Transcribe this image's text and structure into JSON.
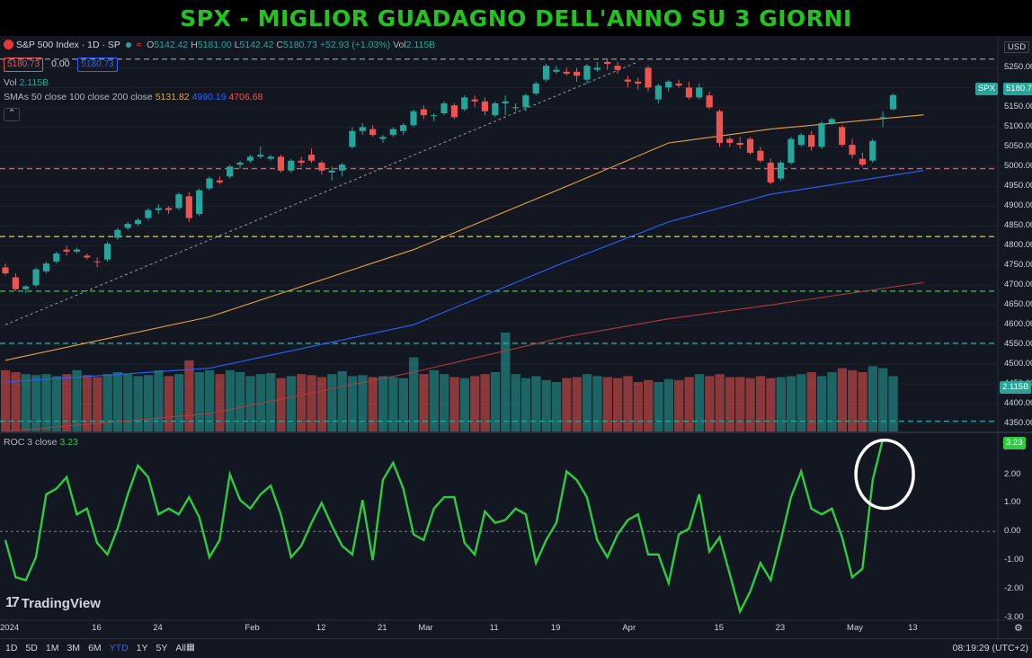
{
  "title": "SPX - MIGLIOR GUADAGNO DELL'ANNO SU 3 GIORNI",
  "symbol": {
    "name": "S&P 500 Index · 1D · SP",
    "o_label": "O",
    "o": "5142.42",
    "h_label": "H",
    "h": "5181.00",
    "l_label": "L",
    "l": "5142.42",
    "c_label": "C",
    "c": "5180.73",
    "change": "+52.93 (+1.03%)",
    "vol_label": "Vol",
    "vol": "2.115B",
    "bid": "5180.73",
    "spread": "0.00",
    "ask": "5180.73"
  },
  "vol_legend": {
    "label": "Vol",
    "value": "2.115B"
  },
  "sma_legend": {
    "label": "SMAs 50 close 100 close 200 close",
    "sma50": "5131.82",
    "sma100": "4990.19",
    "sma200": "4706.68"
  },
  "roc_legend": {
    "label": "ROC 3 close",
    "value": "3.23"
  },
  "price_axis": {
    "currency": "USD",
    "ticks": [
      "5250.00",
      "5200.00",
      "5150.00",
      "5100.00",
      "5050.00",
      "5000.00",
      "4950.00",
      "4900.00",
      "4850.00",
      "4800.00",
      "4750.00",
      "4700.00",
      "4650.00",
      "4600.00",
      "4550.00",
      "4500.00",
      "4450.00",
      "4400.00",
      "4350.00"
    ],
    "last_tag_symbol": "SPX",
    "last_tag_value": "5180.73",
    "vol_tag": "2.115B"
  },
  "roc_axis": {
    "ticks": [
      "3.00",
      "2.00",
      "1.00",
      "0.00",
      "-1.00",
      "-2.00",
      "-3.00"
    ],
    "last_tag": "3.23"
  },
  "time_axis": [
    "2024",
    "16",
    "24",
    "Feb",
    "12",
    "21",
    "Mar",
    "11",
    "19",
    "Apr",
    "15",
    "23",
    "May",
    "13"
  ],
  "range_buttons": [
    "1D",
    "5D",
    "1M",
    "3M",
    "6M",
    "YTD",
    "1Y",
    "5Y",
    "All"
  ],
  "active_range": "YTD",
  "clock": "08:19:29 (UTC+2)",
  "logo": "TradingView",
  "colors": {
    "up": "#26a69a",
    "down": "#ef5350",
    "roc": "#2ecc40",
    "sma50": "#e9a23b",
    "sma100": "#2962ff",
    "sma200": "#b23a3a",
    "title": "#22c21f"
  },
  "chart_data": [
    {
      "type": "candlestick",
      "title": "S&P 500 Index · 1D · SP",
      "x_unit": "trading day (Jan 2 – May 3 2024)",
      "ylim": [
        4330,
        5285
      ],
      "candles": [
        [
          4745,
          4755,
          4725,
          4730
        ],
        [
          4720,
          4730,
          4685,
          4690
        ],
        [
          4690,
          4700,
          4680,
          4697
        ],
        [
          4700,
          4745,
          4695,
          4740
        ],
        [
          4735,
          4760,
          4730,
          4755
        ],
        [
          4760,
          4785,
          4755,
          4780
        ],
        [
          4790,
          4800,
          4775,
          4785
        ],
        [
          4785,
          4795,
          4780,
          4790
        ],
        [
          4775,
          4780,
          4765,
          4770
        ],
        [
          4760,
          4770,
          4745,
          4758
        ],
        [
          4765,
          4810,
          4760,
          4805
        ],
        [
          4820,
          4845,
          4815,
          4840
        ],
        [
          4845,
          4860,
          4840,
          4855
        ],
        [
          4855,
          4870,
          4850,
          4865
        ],
        [
          4870,
          4895,
          4865,
          4890
        ],
        [
          4890,
          4905,
          4880,
          4895
        ],
        [
          4895,
          4900,
          4880,
          4890
        ],
        [
          4895,
          4935,
          4890,
          4930
        ],
        [
          4925,
          4935,
          4860,
          4870
        ],
        [
          4880,
          4945,
          4875,
          4940
        ],
        [
          4945,
          4975,
          4940,
          4970
        ],
        [
          4965,
          4975,
          4955,
          4960
        ],
        [
          4975,
          5005,
          4970,
          5000
        ],
        [
          5005,
          5015,
          4995,
          5010
        ],
        [
          5015,
          5030,
          5010,
          5025
        ],
        [
          5025,
          5050,
          5020,
          5030
        ],
        [
          5020,
          5030,
          5015,
          5025
        ],
        [
          5025,
          5030,
          4985,
          4990
        ],
        [
          4990,
          5020,
          4985,
          5015
        ],
        [
          5015,
          5025,
          5000,
          5010
        ],
        [
          5030,
          5045,
          5010,
          5015
        ],
        [
          5010,
          5015,
          4980,
          4990
        ],
        [
          4985,
          5000,
          4965,
          4990
        ],
        [
          4990,
          5010,
          4975,
          5005
        ],
        [
          5050,
          5100,
          5045,
          5090
        ],
        [
          5090,
          5110,
          5080,
          5100
        ],
        [
          5095,
          5105,
          5075,
          5080
        ],
        [
          5070,
          5080,
          5060,
          5075
        ],
        [
          5080,
          5100,
          5075,
          5095
        ],
        [
          5090,
          5110,
          5080,
          5105
        ],
        [
          5105,
          5145,
          5100,
          5140
        ],
        [
          5145,
          5155,
          5120,
          5130
        ],
        [
          5130,
          5135,
          5115,
          5130
        ],
        [
          5135,
          5165,
          5130,
          5160
        ],
        [
          5155,
          5160,
          5120,
          5125
        ],
        [
          5145,
          5180,
          5140,
          5175
        ],
        [
          5170,
          5180,
          5150,
          5165
        ],
        [
          5165,
          5175,
          5130,
          5140
        ],
        [
          5130,
          5165,
          5125,
          5160
        ],
        [
          5160,
          5180,
          5130,
          5165
        ],
        [
          5150,
          5160,
          5140,
          5150
        ],
        [
          5150,
          5185,
          5140,
          5180
        ],
        [
          5185,
          5215,
          5180,
          5210
        ],
        [
          5220,
          5260,
          5215,
          5255
        ],
        [
          5240,
          5255,
          5235,
          5245
        ],
        [
          5240,
          5250,
          5230,
          5235
        ],
        [
          5240,
          5250,
          5215,
          5230
        ],
        [
          5220,
          5260,
          5210,
          5255
        ],
        [
          5245,
          5265,
          5240,
          5250
        ],
        [
          5265,
          5270,
          5245,
          5260
        ],
        [
          5255,
          5265,
          5235,
          5245
        ],
        [
          5220,
          5230,
          5200,
          5215
        ],
        [
          5215,
          5225,
          5195,
          5210
        ],
        [
          5250,
          5255,
          5190,
          5200
        ],
        [
          5170,
          5210,
          5160,
          5205
        ],
        [
          5200,
          5220,
          5190,
          5215
        ],
        [
          5210,
          5220,
          5200,
          5205
        ],
        [
          5200,
          5215,
          5170,
          5175
        ],
        [
          5175,
          5210,
          5170,
          5200
        ],
        [
          5180,
          5190,
          5145,
          5150
        ],
        [
          5140,
          5145,
          5050,
          5060
        ],
        [
          5070,
          5075,
          5050,
          5060
        ],
        [
          5060,
          5075,
          5045,
          5055
        ],
        [
          5070,
          5075,
          5030,
          5035
        ],
        [
          5040,
          5050,
          5010,
          5015
        ],
        [
          5010,
          5020,
          4955,
          4960
        ],
        [
          4970,
          5015,
          4965,
          5010
        ],
        [
          5010,
          5075,
          5005,
          5070
        ],
        [
          5055,
          5085,
          5050,
          5080
        ],
        [
          5080,
          5090,
          5040,
          5050
        ],
        [
          5050,
          5115,
          5045,
          5110
        ],
        [
          5110,
          5125,
          5105,
          5120
        ],
        [
          5100,
          5105,
          5050,
          5055
        ],
        [
          5055,
          5070,
          5020,
          5030
        ],
        [
          5020,
          5035,
          5000,
          5005
        ],
        [
          5015,
          5070,
          5010,
          5065
        ],
        [
          5125,
          5140,
          5100,
          5125
        ],
        [
          5145,
          5185,
          5142,
          5181
        ]
      ],
      "volume_relative": [
        0.62,
        0.6,
        0.58,
        0.57,
        0.58,
        0.56,
        0.58,
        0.62,
        0.57,
        0.55,
        0.58,
        0.6,
        0.58,
        0.56,
        0.57,
        0.62,
        0.56,
        0.58,
        0.72,
        0.6,
        0.62,
        0.58,
        0.62,
        0.6,
        0.56,
        0.58,
        0.59,
        0.54,
        0.56,
        0.58,
        0.57,
        0.55,
        0.58,
        0.61,
        0.56,
        0.57,
        0.55,
        0.56,
        0.55,
        0.54,
        0.75,
        0.58,
        0.62,
        0.58,
        0.55,
        0.54,
        0.56,
        0.58,
        0.6,
        1.0,
        0.58,
        0.54,
        0.56,
        0.52,
        0.5,
        0.54,
        0.55,
        0.58,
        0.56,
        0.55,
        0.54,
        0.56,
        0.5,
        0.52,
        0.5,
        0.53,
        0.52,
        0.55,
        0.58,
        0.56,
        0.58,
        0.55,
        0.55,
        0.54,
        0.56,
        0.54,
        0.55,
        0.56,
        0.58,
        0.6,
        0.56,
        0.6,
        0.64,
        0.62,
        0.6,
        0.66,
        0.64,
        0.56
      ],
      "sma50_path": [
        [
          0,
          4510
        ],
        [
          20,
          4620
        ],
        [
          40,
          4790
        ],
        [
          55,
          4950
        ],
        [
          65,
          5060
        ],
        [
          75,
          5095
        ],
        [
          90,
          5131
        ]
      ],
      "sma100_path": [
        [
          0,
          4455
        ],
        [
          20,
          4490
        ],
        [
          40,
          4600
        ],
        [
          55,
          4760
        ],
        [
          65,
          4860
        ],
        [
          75,
          4930
        ],
        [
          90,
          4990
        ]
      ],
      "sma200_path": [
        [
          0,
          4330
        ],
        [
          20,
          4375
        ],
        [
          40,
          4480
        ],
        [
          55,
          4570
        ],
        [
          65,
          4615
        ],
        [
          75,
          4650
        ],
        [
          90,
          4707
        ]
      ],
      "horizontal_levels": [
        {
          "value": 5272,
          "style": "grey-dashed"
        },
        {
          "value": 4995,
          "style": "red-dashed"
        },
        {
          "value": 4823,
          "style": "yellow-dashed"
        },
        {
          "value": 4685,
          "style": "green-dashed"
        },
        {
          "value": 4553,
          "style": "teal-dashed"
        },
        {
          "value": 4356,
          "style": "teal-dashed"
        }
      ],
      "trendline": [
        [
          0,
          4600
        ],
        [
          62,
          5265
        ]
      ]
    },
    {
      "type": "line",
      "title": "ROC 3 close",
      "ylim": [
        -3.1,
        3.4
      ],
      "series": [
        {
          "name": "ROC 3 close",
          "values": [
            -0.3,
            -1.6,
            -1.7,
            -0.9,
            1.3,
            1.5,
            1.9,
            0.6,
            0.8,
            -0.4,
            -0.8,
            0.1,
            1.3,
            2.3,
            1.9,
            0.6,
            0.8,
            0.6,
            1.2,
            0.5,
            -0.9,
            -0.3,
            2.0,
            1.1,
            0.8,
            1.3,
            1.6,
            0.6,
            -0.9,
            -0.5,
            0.3,
            1.0,
            0.2,
            -0.5,
            -0.8,
            1.1,
            -1.0,
            1.8,
            2.4,
            1.5,
            -0.1,
            -0.3,
            0.8,
            1.2,
            1.2,
            -0.4,
            -0.8,
            0.7,
            0.3,
            0.4,
            0.8,
            0.6,
            -1.1,
            -0.3,
            0.3,
            2.1,
            1.8,
            1.2,
            -0.3,
            -0.9,
            -0.1,
            0.4,
            0.6,
            -0.8,
            -0.8,
            -1.8,
            -0.1,
            0.1,
            1.3,
            -0.7,
            -0.2,
            -1.5,
            -2.8,
            -2.1,
            -1.1,
            -1.7,
            -0.3,
            1.2,
            2.1,
            0.8,
            0.6,
            0.8,
            -0.2,
            -1.6,
            -1.3,
            1.8,
            3.23
          ]
        }
      ],
      "zero_line": 0
    }
  ]
}
